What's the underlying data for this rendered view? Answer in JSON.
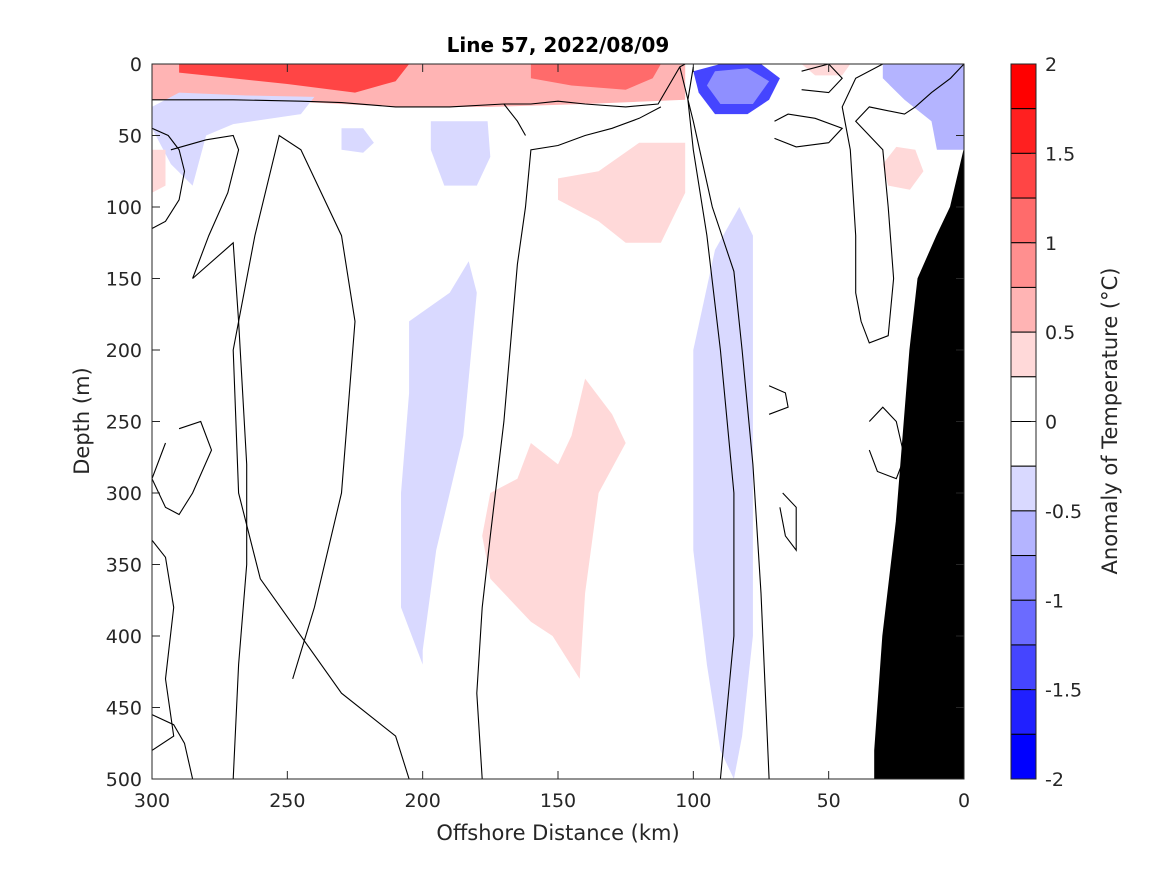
{
  "chart_data": {
    "type": "heatmap",
    "title": "Line 57, 2022/08/09",
    "xlabel": "Offshore Distance (km)",
    "ylabel": "Depth (m)",
    "colorbar_label": "Anomaly of Temperature (°C)",
    "xlim": [
      300,
      0
    ],
    "ylim": [
      0,
      500
    ],
    "x_reversed": true,
    "y_reversed": true,
    "x_ticks": [
      "300",
      "250",
      "200",
      "150",
      "100",
      "50",
      "0"
    ],
    "y_ticks": [
      "0",
      "50",
      "100",
      "150",
      "200",
      "250",
      "300",
      "350",
      "400",
      "450",
      "500"
    ],
    "colorbar_ticks": [
      "2",
      "1.5",
      "1",
      "0.5",
      "0",
      "-0.5",
      "-1",
      "-1.5",
      "-2"
    ],
    "colorbar_range": [
      -2,
      2
    ],
    "colorbar_levels": [
      {
        "lo": 1.75,
        "hi": 2.0,
        "color": "#ff0000"
      },
      {
        "lo": 1.5,
        "hi": 1.75,
        "color": "#ff2020"
      },
      {
        "lo": 1.25,
        "hi": 1.5,
        "color": "#ff4545"
      },
      {
        "lo": 1.0,
        "hi": 1.25,
        "color": "#ff6b6b"
      },
      {
        "lo": 0.75,
        "hi": 1.0,
        "color": "#ff8f8f"
      },
      {
        "lo": 0.5,
        "hi": 0.75,
        "color": "#ffb4b4"
      },
      {
        "lo": 0.25,
        "hi": 0.5,
        "color": "#ffd9d9"
      },
      {
        "lo": 0.0,
        "hi": 0.25,
        "color": "#ffffff"
      },
      {
        "lo": -0.25,
        "hi": 0.0,
        "color": "#ffffff"
      },
      {
        "lo": -0.5,
        "hi": -0.25,
        "color": "#d9d9ff"
      },
      {
        "lo": -0.75,
        "hi": -0.5,
        "color": "#b4b4ff"
      },
      {
        "lo": -1.0,
        "hi": -0.75,
        "color": "#8f8fff"
      },
      {
        "lo": -1.25,
        "hi": -1.0,
        "color": "#6b6bff"
      },
      {
        "lo": -1.5,
        "hi": -1.25,
        "color": "#4545ff"
      },
      {
        "lo": -1.75,
        "hi": -1.5,
        "color": "#2020ff"
      },
      {
        "lo": -2.0,
        "hi": -1.75,
        "color": "#0000ff"
      }
    ],
    "anomaly_regions": [
      {
        "label": "surface warm band",
        "value": 0.5,
        "points": [
          [
            300,
            0
          ],
          [
            103,
            0
          ],
          [
            103,
            25
          ],
          [
            140,
            28
          ],
          [
            175,
            30
          ],
          [
            210,
            30
          ],
          [
            240,
            27
          ],
          [
            270,
            25
          ],
          [
            300,
            25
          ]
        ]
      },
      {
        "label": "surface warm core",
        "value": 1.25,
        "points": [
          [
            290,
            0
          ],
          [
            205,
            0
          ],
          [
            210,
            12
          ],
          [
            225,
            20
          ],
          [
            250,
            14
          ],
          [
            275,
            9
          ],
          [
            290,
            6
          ]
        ]
      },
      {
        "label": "surface warm mid",
        "value": 1.0,
        "points": [
          [
            160,
            0
          ],
          [
            112,
            0
          ],
          [
            115,
            10
          ],
          [
            125,
            18
          ],
          [
            145,
            15
          ],
          [
            160,
            10
          ]
        ]
      },
      {
        "label": "near-surface cold blob",
        "value": -0.5,
        "points": [
          [
            300,
            30
          ],
          [
            290,
            20
          ],
          [
            265,
            22
          ],
          [
            240,
            23
          ],
          [
            245,
            35
          ],
          [
            270,
            42
          ],
          [
            280,
            50
          ],
          [
            285,
            85
          ],
          [
            293,
            70
          ],
          [
            300,
            45
          ]
        ]
      },
      {
        "label": "cold blob small",
        "value": -0.5,
        "points": [
          [
            230,
            45
          ],
          [
            222,
            45
          ],
          [
            218,
            55
          ],
          [
            222,
            62
          ],
          [
            230,
            60
          ]
        ]
      },
      {
        "label": "cold blob 2",
        "value": -0.5,
        "points": [
          [
            197,
            40
          ],
          [
            176,
            40
          ],
          [
            175,
            65
          ],
          [
            180,
            85
          ],
          [
            192,
            85
          ],
          [
            197,
            60
          ]
        ]
      },
      {
        "label": "warm mid upper",
        "value": 0.25,
        "points": [
          [
            150,
            80
          ],
          [
            135,
            75
          ],
          [
            120,
            55
          ],
          [
            103,
            55
          ],
          [
            103,
            90
          ],
          [
            112,
            125
          ],
          [
            125,
            125
          ],
          [
            135,
            110
          ],
          [
            150,
            95
          ]
        ]
      },
      {
        "label": "cold column 1",
        "value": -0.5,
        "points": [
          [
            205,
            180
          ],
          [
            190,
            160
          ],
          [
            183,
            138
          ],
          [
            180,
            160
          ],
          [
            185,
            260
          ],
          [
            195,
            340
          ],
          [
            200,
            410
          ],
          [
            200,
            420
          ],
          [
            208,
            380
          ],
          [
            208,
            300
          ],
          [
            205,
            230
          ]
        ]
      },
      {
        "label": "warm column",
        "value": 0.25,
        "points": [
          [
            175,
            300
          ],
          [
            165,
            290
          ],
          [
            160,
            265
          ],
          [
            150,
            280
          ],
          [
            145,
            260
          ],
          [
            140,
            220
          ],
          [
            130,
            245
          ],
          [
            125,
            265
          ],
          [
            135,
            300
          ],
          [
            140,
            370
          ],
          [
            142,
            430
          ],
          [
            152,
            400
          ],
          [
            160,
            390
          ],
          [
            175,
            360
          ],
          [
            178,
            330
          ]
        ]
      },
      {
        "label": "cold column 2",
        "value": -0.5,
        "points": [
          [
            100,
            200
          ],
          [
            92,
            130
          ],
          [
            83,
            100
          ],
          [
            78,
            120
          ],
          [
            78,
            250
          ],
          [
            78,
            400
          ],
          [
            82,
            470
          ],
          [
            85,
            500
          ],
          [
            90,
            480
          ],
          [
            95,
            420
          ],
          [
            100,
            340
          ]
        ]
      },
      {
        "label": "subsurface cold core",
        "value": -1.5,
        "points": [
          [
            100,
            5
          ],
          [
            90,
            0
          ],
          [
            75,
            0
          ],
          [
            68,
            10
          ],
          [
            72,
            25
          ],
          [
            80,
            35
          ],
          [
            92,
            35
          ],
          [
            98,
            20
          ]
        ]
      },
      {
        "label": "cold inner",
        "value": -1.0,
        "points": [
          [
            92,
            5
          ],
          [
            80,
            3
          ],
          [
            72,
            12
          ],
          [
            78,
            28
          ],
          [
            90,
            28
          ],
          [
            95,
            15
          ]
        ]
      },
      {
        "label": "cold right surface",
        "value": -0.75,
        "points": [
          [
            30,
            0
          ],
          [
            0,
            0
          ],
          [
            0,
            60
          ],
          [
            10,
            60
          ],
          [
            12,
            40
          ],
          [
            22,
            25
          ],
          [
            30,
            10
          ]
        ]
      },
      {
        "label": "warm right blob",
        "value": 0.25,
        "points": [
          [
            30,
            70
          ],
          [
            25,
            58
          ],
          [
            18,
            60
          ],
          [
            15,
            75
          ],
          [
            20,
            88
          ],
          [
            28,
            85
          ]
        ]
      },
      {
        "label": "warm left edge",
        "value": 0.25,
        "points": [
          [
            300,
            60
          ],
          [
            295,
            60
          ],
          [
            295,
            85
          ],
          [
            300,
            90
          ]
        ]
      },
      {
        "label": "warm surface right",
        "value": 0.25,
        "points": [
          [
            60,
            0
          ],
          [
            42,
            0
          ],
          [
            45,
            8
          ],
          [
            55,
            8
          ]
        ]
      }
    ],
    "zero_contours": [
      [
        [
          300,
          25
        ],
        [
          270,
          25
        ],
        [
          245,
          26
        ],
        [
          230,
          27
        ],
        [
          210,
          30
        ],
        [
          190,
          30
        ],
        [
          170,
          28
        ],
        [
          160,
          28
        ],
        [
          150,
          26
        ],
        [
          140,
          28
        ],
        [
          125,
          30
        ],
        [
          113,
          28
        ],
        [
          105,
          2
        ],
        [
          103,
          0
        ]
      ],
      [
        [
          300,
          115
        ],
        [
          295,
          110
        ],
        [
          290,
          95
        ],
        [
          288,
          75
        ],
        [
          290,
          60
        ],
        [
          294,
          50
        ],
        [
          300,
          45
        ]
      ],
      [
        [
          285,
          150
        ],
        [
          279,
          120
        ],
        [
          272,
          90
        ],
        [
          268,
          60
        ],
        [
          270,
          50
        ],
        [
          280,
          53
        ],
        [
          293,
          60
        ]
      ],
      [
        [
          300,
          333
        ],
        [
          295,
          345
        ],
        [
          292,
          380
        ],
        [
          295,
          430
        ],
        [
          292,
          470
        ],
        [
          300,
          480
        ]
      ],
      [
        [
          300,
          455
        ],
        [
          292,
          462
        ],
        [
          288,
          475
        ],
        [
          285,
          500
        ]
      ],
      [
        [
          270,
          500
        ],
        [
          268,
          420
        ],
        [
          265,
          350
        ],
        [
          265,
          280
        ],
        [
          268,
          180
        ],
        [
          270,
          125
        ],
        [
          285,
          150
        ]
      ],
      [
        [
          205,
          500
        ],
        [
          210,
          470
        ],
        [
          230,
          440
        ],
        [
          260,
          360
        ],
        [
          268,
          300
        ],
        [
          270,
          200
        ],
        [
          262,
          120
        ],
        [
          253,
          50
        ],
        [
          245,
          60
        ],
        [
          230,
          120
        ],
        [
          225,
          180
        ],
        [
          230,
          300
        ],
        [
          240,
          380
        ],
        [
          248,
          430
        ]
      ],
      [
        [
          178,
          500
        ],
        [
          180,
          440
        ],
        [
          178,
          380
        ],
        [
          175,
          330
        ],
        [
          170,
          250
        ],
        [
          165,
          140
        ],
        [
          162,
          100
        ],
        [
          160,
          60
        ],
        [
          150,
          57
        ],
        [
          140,
          50
        ],
        [
          130,
          45
        ],
        [
          120,
          38
        ],
        [
          112,
          30
        ]
      ],
      [
        [
          170,
          28
        ],
        [
          165,
          40
        ],
        [
          162,
          50
        ]
      ],
      [
        [
          105,
          2
        ],
        [
          100,
          40
        ],
        [
          93,
          100
        ],
        [
          85,
          145
        ],
        [
          82,
          200
        ],
        [
          78,
          280
        ],
        [
          75,
          370
        ],
        [
          72,
          500
        ]
      ],
      [
        [
          100,
          2
        ],
        [
          102,
          25
        ],
        [
          100,
          60
        ],
        [
          95,
          120
        ],
        [
          90,
          200
        ],
        [
          85,
          300
        ],
        [
          85,
          400
        ],
        [
          90,
          500
        ]
      ],
      [
        [
          60,
          5
        ],
        [
          50,
          0
        ],
        [
          45,
          10
        ],
        [
          50,
          20
        ],
        [
          60,
          18
        ]
      ],
      [
        [
          70,
          40
        ],
        [
          65,
          35
        ],
        [
          55,
          38
        ],
        [
          45,
          45
        ],
        [
          50,
          55
        ],
        [
          62,
          58
        ],
        [
          70,
          52
        ]
      ],
      [
        [
          30,
          0
        ],
        [
          40,
          10
        ],
        [
          45,
          30
        ],
        [
          42,
          60
        ],
        [
          40,
          120
        ],
        [
          40,
          160
        ],
        [
          38,
          180
        ],
        [
          35,
          195
        ],
        [
          28,
          190
        ],
        [
          26,
          150
        ],
        [
          28,
          100
        ],
        [
          30,
          60
        ],
        [
          40,
          40
        ],
        [
          35,
          30
        ],
        [
          22,
          35
        ],
        [
          18,
          30
        ],
        [
          12,
          20
        ],
        [
          5,
          10
        ],
        [
          0,
          0
        ]
      ],
      [
        [
          72,
          225
        ],
        [
          66,
          230
        ],
        [
          65,
          240
        ],
        [
          72,
          245
        ]
      ],
      [
        [
          67,
          300
        ],
        [
          62,
          310
        ],
        [
          62,
          340
        ],
        [
          66,
          330
        ],
        [
          68,
          310
        ]
      ],
      [
        [
          35,
          250
        ],
        [
          30,
          240
        ],
        [
          25,
          250
        ],
        [
          22,
          275
        ],
        [
          25,
          290
        ],
        [
          32,
          285
        ],
        [
          35,
          270
        ]
      ],
      [
        [
          290,
          255
        ],
        [
          282,
          250
        ],
        [
          278,
          270
        ],
        [
          285,
          300
        ],
        [
          290,
          315
        ],
        [
          295,
          310
        ],
        [
          300,
          290
        ],
        [
          295,
          265
        ]
      ]
    ],
    "bathymetry": [
      [
        33,
        500
      ],
      [
        33,
        480
      ],
      [
        30,
        400
      ],
      [
        25,
        320
      ],
      [
        20,
        200
      ],
      [
        17,
        150
      ],
      [
        10,
        120
      ],
      [
        5,
        100
      ],
      [
        0,
        60
      ],
      [
        0,
        500
      ]
    ]
  }
}
